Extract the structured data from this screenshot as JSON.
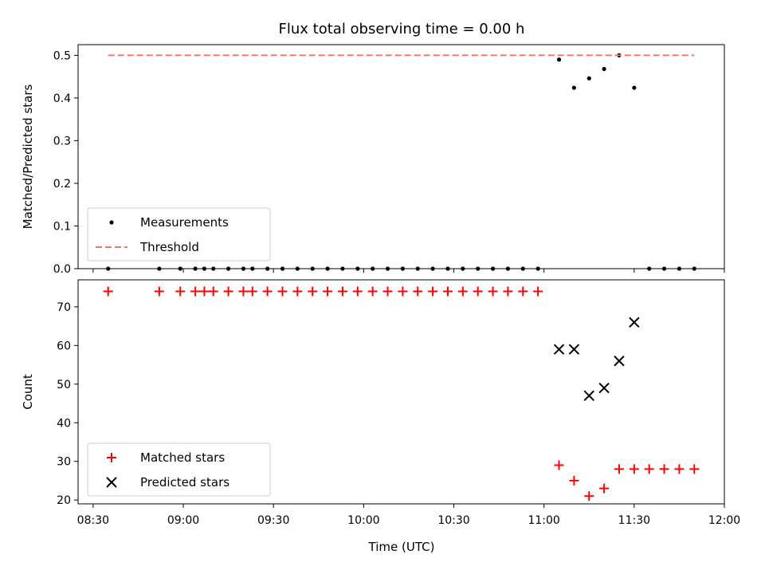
{
  "chart_data": {
    "type": "scatter",
    "title": "Flux total observing time = 0.00 h",
    "xlabel": "Time (UTC)",
    "xlim": [
      "08:25",
      "12:00"
    ],
    "xticks": [
      "08:30",
      "09:00",
      "09:30",
      "10:00",
      "10:30",
      "11:00",
      "11:30",
      "12:00"
    ],
    "grid": false,
    "colors": {
      "measurements": "#000000",
      "threshold": "#ff7070",
      "matched": "#ff0000",
      "predicted": "#000000"
    },
    "panels": [
      {
        "ylabel": "Matched/Predicted stars",
        "ylim": [
          0,
          0.525
        ],
        "yticks": [
          "0.0",
          "0.1",
          "0.2",
          "0.3",
          "0.4",
          "0.5"
        ],
        "legend_position": "lower-left",
        "series": [
          {
            "name": "Measurements",
            "kind": "scatter",
            "marker": "dot",
            "x": [
              "08:35",
              "08:52",
              "08:59",
              "09:04",
              "09:07",
              "09:10",
              "09:15",
              "09:20",
              "09:23",
              "09:28",
              "09:33",
              "09:38",
              "09:43",
              "09:48",
              "09:53",
              "09:58",
              "10:03",
              "10:08",
              "10:13",
              "10:18",
              "10:23",
              "10:28",
              "10:33",
              "10:38",
              "10:43",
              "10:48",
              "10:53",
              "10:58",
              "11:05",
              "11:10",
              "11:15",
              "11:20",
              "11:25",
              "11:30",
              "11:35",
              "11:40",
              "11:45",
              "11:50"
            ],
            "y": [
              0,
              0,
              0,
              0,
              0,
              0,
              0,
              0,
              0,
              0,
              0,
              0,
              0,
              0,
              0,
              0,
              0,
              0,
              0,
              0,
              0,
              0,
              0,
              0,
              0,
              0,
              0,
              0,
              0.49,
              0.424,
              0.446,
              0.468,
              0.5,
              0.424,
              0,
              0,
              0,
              0
            ]
          },
          {
            "name": "Threshold",
            "kind": "line",
            "style": "dashed",
            "x": [
              "08:35",
              "11:50"
            ],
            "y": [
              0.5,
              0.5
            ]
          }
        ]
      },
      {
        "ylabel": "Count",
        "ylim": [
          19,
          77
        ],
        "yticks": [
          "20",
          "30",
          "40",
          "50",
          "60",
          "70"
        ],
        "legend_position": "lower-left",
        "series": [
          {
            "name": "Matched stars",
            "kind": "scatter",
            "marker": "plus",
            "x": [
              "08:35",
              "08:52",
              "08:59",
              "09:04",
              "09:07",
              "09:10",
              "09:15",
              "09:20",
              "09:23",
              "09:28",
              "09:33",
              "09:38",
              "09:43",
              "09:48",
              "09:53",
              "09:58",
              "10:03",
              "10:08",
              "10:13",
              "10:18",
              "10:23",
              "10:28",
              "10:33",
              "10:38",
              "10:43",
              "10:48",
              "10:53",
              "10:58",
              "11:05",
              "11:10",
              "11:15",
              "11:20",
              "11:25",
              "11:30",
              "11:35",
              "11:40",
              "11:45",
              "11:50"
            ],
            "y": [
              74,
              74,
              74,
              74,
              74,
              74,
              74,
              74,
              74,
              74,
              74,
              74,
              74,
              74,
              74,
              74,
              74,
              74,
              74,
              74,
              74,
              74,
              74,
              74,
              74,
              74,
              74,
              74,
              29,
              25,
              21,
              23,
              28,
              28,
              28,
              28,
              28,
              28
            ]
          },
          {
            "name": "Predicted stars",
            "kind": "scatter",
            "marker": "cross",
            "x": [
              "11:05",
              "11:10",
              "11:15",
              "11:20",
              "11:25",
              "11:30"
            ],
            "y": [
              59,
              59,
              47,
              49,
              56,
              66
            ]
          }
        ]
      }
    ]
  }
}
